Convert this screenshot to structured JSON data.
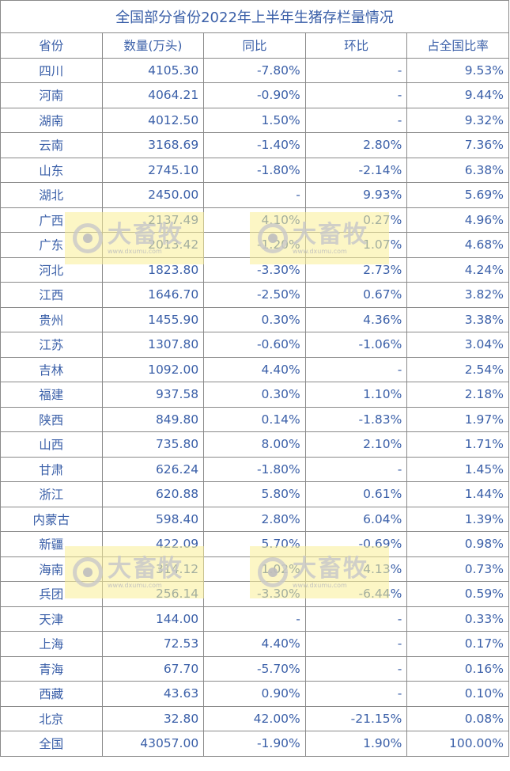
{
  "title": "全国部分省份2022年上半年生猪存栏量情况",
  "headers": [
    "省份",
    "数量(万头)",
    "同比",
    "环比",
    "占全国比率"
  ],
  "rows": [
    [
      "四川",
      "4105.30",
      "-7.80%",
      "-",
      "9.53%"
    ],
    [
      "河南",
      "4064.21",
      "-0.90%",
      "-",
      "9.44%"
    ],
    [
      "湖南",
      "4012.50",
      "1.50%",
      "-",
      "9.32%"
    ],
    [
      "云南",
      "3168.69",
      "-1.40%",
      "2.80%",
      "7.36%"
    ],
    [
      "山东",
      "2745.10",
      "-1.80%",
      "-2.14%",
      "6.38%"
    ],
    [
      "湖北",
      "2450.00",
      "-",
      "9.93%",
      "5.69%"
    ],
    [
      "广西",
      "2137.49",
      "4.10%",
      "0.27%",
      "4.96%"
    ],
    [
      "广东",
      "2013.42",
      "-1.20%",
      "1.07%",
      "4.68%"
    ],
    [
      "河北",
      "1823.80",
      "-3.30%",
      "2.73%",
      "4.24%"
    ],
    [
      "江西",
      "1646.70",
      "-2.50%",
      "0.67%",
      "3.82%"
    ],
    [
      "贵州",
      "1455.90",
      "0.30%",
      "4.36%",
      "3.38%"
    ],
    [
      "江苏",
      "1307.80",
      "-0.60%",
      "-1.06%",
      "3.04%"
    ],
    [
      "吉林",
      "1092.00",
      "4.40%",
      "-",
      "2.54%"
    ],
    [
      "福建",
      "937.58",
      "0.30%",
      "1.10%",
      "2.18%"
    ],
    [
      "陕西",
      "849.80",
      "0.14%",
      "-1.83%",
      "1.97%"
    ],
    [
      "山西",
      "735.80",
      "8.00%",
      "2.10%",
      "1.71%"
    ],
    [
      "甘肃",
      "626.24",
      "-1.80%",
      "-",
      "1.45%"
    ],
    [
      "浙江",
      "620.88",
      "5.80%",
      "0.61%",
      "1.44%"
    ],
    [
      "内蒙古",
      "598.40",
      "2.80%",
      "6.04%",
      "1.39%"
    ],
    [
      "新疆",
      "422.09",
      "5.70%",
      "-0.69%",
      "0.98%"
    ],
    [
      "海南",
      "314.12",
      "1.02%",
      "4.13%",
      "0.73%"
    ],
    [
      "兵团",
      "256.14",
      "-3.30%",
      "-6.44%",
      "0.59%"
    ],
    [
      "天津",
      "144.00",
      "-",
      "-",
      "0.33%"
    ],
    [
      "上海",
      "72.53",
      "4.40%",
      "-",
      "0.17%"
    ],
    [
      "青海",
      "67.70",
      "-5.70%",
      "-",
      "0.16%"
    ],
    [
      "西藏",
      "43.63",
      "0.90%",
      "-",
      "0.10%"
    ],
    [
      "北京",
      "32.80",
      "42.00%",
      "-21.15%",
      "0.08%"
    ],
    [
      "全国",
      "43057.00",
      "-1.90%",
      "1.90%",
      "100.00%"
    ]
  ],
  "watermark": {
    "brand": "大畜牧",
    "url": "www.dxumu.com",
    "icon": "dxumu-logo-icon"
  },
  "colors": {
    "text": "#3a5fa8",
    "border": "#8a8a8a",
    "watermark_bg": "#faee96"
  }
}
